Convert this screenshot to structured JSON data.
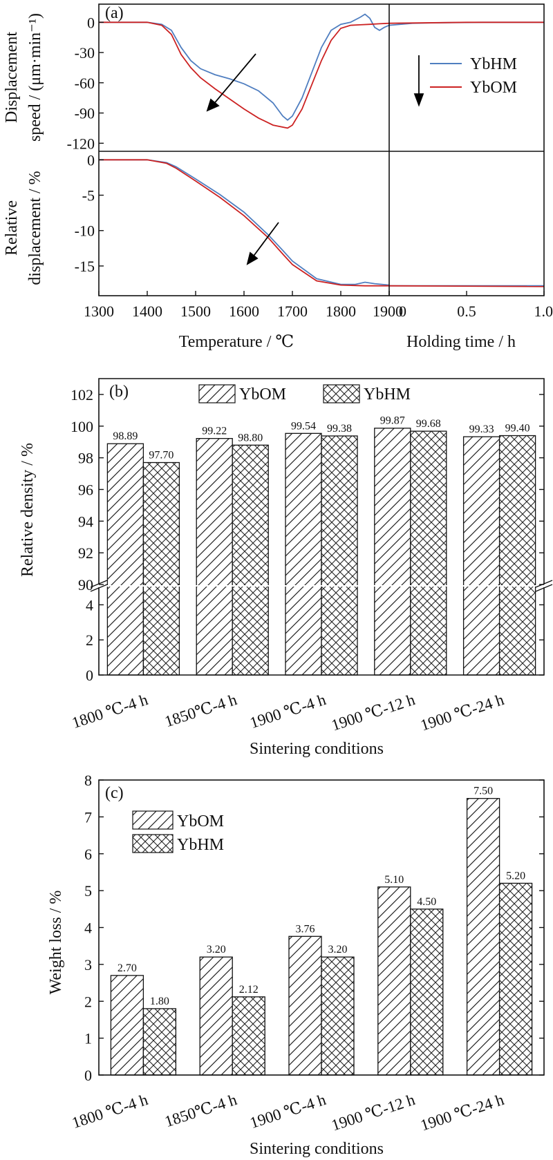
{
  "figure": {
    "panels": [
      "(a)",
      "(b)",
      "(c)"
    ]
  },
  "chart_data": [
    {
      "type": "line",
      "panel": "(a)",
      "ylabel_top": [
        "Displacement",
        "speed / (μm·min⁻¹)"
      ],
      "ylabel_bottom": [
        "Relative",
        "displacement / %"
      ],
      "xlabel_left": "Temperature / ℃",
      "xlabel_right": "Holding time / h",
      "top_yticks": [
        "0",
        "-30",
        "-60",
        "-90",
        "-120"
      ],
      "top_ylim": [
        -128,
        18
      ],
      "bottom_yticks": [
        "0",
        "-5",
        "-10",
        "-15"
      ],
      "bottom_ylim": [
        -19.2,
        1.2
      ],
      "left_xticks": [
        "1300",
        "1400",
        "1500",
        "1600",
        "1700",
        "1800",
        "1900"
      ],
      "left_xlim": [
        1300,
        1900
      ],
      "right_xticks": [
        "0",
        "0.5",
        "1.0"
      ],
      "right_xlim": [
        0,
        1.0
      ],
      "colors": {
        "YbHM": "#4f7ec0",
        "YbOM": "#cc2222"
      },
      "series": [
        {
          "name": "YbHM",
          "speed_temp": [
            [
              1300,
              0
            ],
            [
              1400,
              0
            ],
            [
              1430,
              -2
            ],
            [
              1450,
              -8
            ],
            [
              1470,
              -25
            ],
            [
              1490,
              -38
            ],
            [
              1510,
              -46
            ],
            [
              1540,
              -52
            ],
            [
              1570,
              -56
            ],
            [
              1600,
              -61
            ],
            [
              1630,
              -68
            ],
            [
              1660,
              -80
            ],
            [
              1680,
              -93
            ],
            [
              1690,
              -97
            ],
            [
              1700,
              -93
            ],
            [
              1720,
              -75
            ],
            [
              1740,
              -50
            ],
            [
              1760,
              -25
            ],
            [
              1780,
              -8
            ],
            [
              1800,
              -2
            ],
            [
              1820,
              0
            ],
            [
              1840,
              5
            ],
            [
              1850,
              8
            ],
            [
              1860,
              4
            ],
            [
              1870,
              -5
            ],
            [
              1880,
              -8
            ],
            [
              1890,
              -5
            ],
            [
              1900,
              -3
            ]
          ],
          "speed_hold": [
            [
              0,
              -3
            ],
            [
              0.15,
              -1
            ],
            [
              0.3,
              -0.5
            ],
            [
              0.6,
              0
            ],
            [
              1.0,
              0
            ]
          ],
          "disp_temp": [
            [
              1300,
              0
            ],
            [
              1400,
              0
            ],
            [
              1440,
              -0.4
            ],
            [
              1460,
              -1
            ],
            [
              1500,
              -2.7
            ],
            [
              1550,
              -4.9
            ],
            [
              1600,
              -7.4
            ],
            [
              1650,
              -10.6
            ],
            [
              1680,
              -12.8
            ],
            [
              1700,
              -14.3
            ],
            [
              1750,
              -16.8
            ],
            [
              1800,
              -17.6
            ],
            [
              1830,
              -17.6
            ],
            [
              1850,
              -17.3
            ],
            [
              1870,
              -17.5
            ],
            [
              1900,
              -17.7
            ]
          ],
          "disp_hold": [
            [
              0,
              -17.8
            ],
            [
              0.2,
              -17.8
            ],
            [
              1.0,
              -17.8
            ]
          ]
        },
        {
          "name": "YbOM",
          "speed_temp": [
            [
              1300,
              0
            ],
            [
              1400,
              0
            ],
            [
              1430,
              -3
            ],
            [
              1450,
              -12
            ],
            [
              1470,
              -32
            ],
            [
              1490,
              -45
            ],
            [
              1510,
              -55
            ],
            [
              1540,
              -66
            ],
            [
              1570,
              -76
            ],
            [
              1600,
              -86
            ],
            [
              1630,
              -95
            ],
            [
              1660,
              -102
            ],
            [
              1690,
              -105
            ],
            [
              1700,
              -102
            ],
            [
              1720,
              -86
            ],
            [
              1740,
              -62
            ],
            [
              1760,
              -38
            ],
            [
              1780,
              -18
            ],
            [
              1800,
              -6
            ],
            [
              1820,
              -3
            ],
            [
              1840,
              -2.5
            ],
            [
              1860,
              -2
            ],
            [
              1880,
              -1.5
            ],
            [
              1900,
              -1
            ]
          ],
          "speed_hold": [
            [
              0,
              -1
            ],
            [
              0.5,
              0
            ],
            [
              1.0,
              0
            ]
          ],
          "disp_temp": [
            [
              1300,
              0
            ],
            [
              1400,
              0
            ],
            [
              1440,
              -0.5
            ],
            [
              1460,
              -1.2
            ],
            [
              1500,
              -3
            ],
            [
              1550,
              -5.3
            ],
            [
              1600,
              -7.9
            ],
            [
              1650,
              -11
            ],
            [
              1680,
              -13.3
            ],
            [
              1700,
              -14.8
            ],
            [
              1750,
              -17.1
            ],
            [
              1800,
              -17.7
            ],
            [
              1850,
              -17.8
            ],
            [
              1900,
              -17.8
            ]
          ],
          "disp_hold": [
            [
              0,
              -17.8
            ],
            [
              1.0,
              -17.9
            ]
          ]
        }
      ]
    },
    {
      "type": "bar",
      "panel": "(b)",
      "ylabel": "Relative density / %",
      "xlabel": "Sintering conditions",
      "categories": [
        "1800 ℃-4 h",
        "1850℃-4 h",
        "1900 ℃-4 h",
        "1900 ℃-12 h",
        "1900 ℃-24 h"
      ],
      "yticks_upper": [
        "90",
        "92",
        "94",
        "96",
        "98",
        "100",
        "102"
      ],
      "ylim_upper": [
        90,
        103
      ],
      "yticks_lower": [
        "0",
        "2",
        "4"
      ],
      "ylim_lower": [
        0,
        5
      ],
      "broken_axis": true,
      "series": [
        {
          "name": "YbOM",
          "values": [
            98.89,
            99.22,
            99.54,
            99.87,
            99.33
          ],
          "labels": [
            "98.89",
            "99.22",
            "99.54",
            "99.87",
            "99.33"
          ],
          "hatch": "diagonal"
        },
        {
          "name": "YbHM",
          "values": [
            97.7,
            98.8,
            99.38,
            99.68,
            99.4
          ],
          "labels": [
            "97.70",
            "98.80",
            "99.38",
            "99.68",
            "99.40"
          ],
          "hatch": "crosshatch"
        }
      ],
      "legend_position": "top-center"
    },
    {
      "type": "bar",
      "panel": "(c)",
      "ylabel": "Weight loss / %",
      "xlabel": "Sintering conditions",
      "categories": [
        "1800 ℃-4 h",
        "1850℃-4 h",
        "1900 ℃-4 h",
        "1900 ℃-12 h",
        "1900 ℃-24 h"
      ],
      "yticks": [
        "0",
        "1",
        "2",
        "3",
        "4",
        "5",
        "6",
        "7",
        "8"
      ],
      "ylim": [
        0,
        8
      ],
      "series": [
        {
          "name": "YbOM",
          "values": [
            2.7,
            3.2,
            3.76,
            5.1,
            7.5
          ],
          "labels": [
            "2.70",
            "3.20",
            "3.76",
            "5.10",
            "7.50"
          ],
          "hatch": "diagonal"
        },
        {
          "name": "YbHM",
          "values": [
            1.8,
            2.12,
            3.2,
            4.5,
            5.2
          ],
          "labels": [
            "1.80",
            "2.12",
            "3.20",
            "4.50",
            "5.20"
          ],
          "hatch": "crosshatch"
        }
      ],
      "legend_position": "top-left"
    }
  ]
}
